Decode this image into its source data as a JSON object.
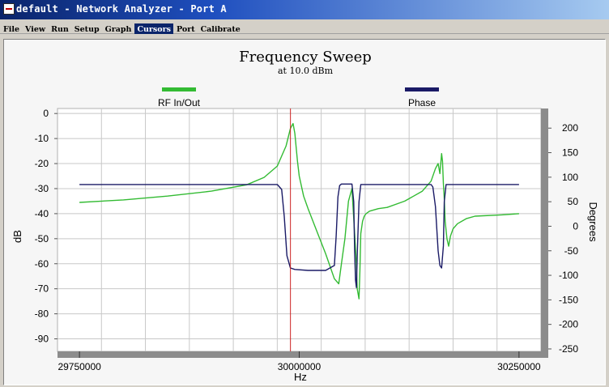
{
  "window": {
    "title": "default - Network Analyzer - Port A"
  },
  "menu": [
    {
      "label": "File"
    },
    {
      "label": "View"
    },
    {
      "label": "Run"
    },
    {
      "label": "Setup"
    },
    {
      "label": "Graph"
    },
    {
      "label": "Cursors",
      "active": true
    },
    {
      "label": "Port"
    },
    {
      "label": "Calibrate"
    }
  ],
  "colors": {
    "rf_series": "#33bb33",
    "phase_series": "#1a1a66",
    "cursor": "#cc2222",
    "grid": "#c8c8c8"
  },
  "chart_data": {
    "type": "line",
    "title": "Frequency Sweep",
    "subtitle": "at 10.0 dBm",
    "xlabel": "Hz",
    "ylabel_left": "dB",
    "ylabel_right": "Degrees",
    "xlim": [
      29725000,
      30275000
    ],
    "ylim_left": [
      -95,
      2
    ],
    "ylim_right": [
      -255,
      240
    ],
    "x_ticks": [
      29750000,
      30000000,
      30250000
    ],
    "x_tick_labels": [
      "29750000",
      "30000000",
      "30250000"
    ],
    "y_left_ticks": [
      0,
      -10,
      -20,
      -30,
      -40,
      -50,
      -60,
      -70,
      -80,
      -90
    ],
    "y_left_tick_labels": [
      "0",
      "-10",
      "-20",
      "-30",
      "-40",
      "-50",
      "-60",
      "-70",
      "-80",
      "-90"
    ],
    "y_right_ticks": [
      200,
      150,
      100,
      50,
      0,
      -50,
      -100,
      -150,
      -200,
      -250
    ],
    "y_right_tick_labels": [
      "200",
      "150",
      "100",
      "50",
      "0",
      "-50",
      "-100",
      "-150",
      "-200",
      "-250"
    ],
    "grid": true,
    "legend_position": "top",
    "cursor_x": 29990000,
    "series": [
      {
        "name": "RF In/Out",
        "axis": "left",
        "x": [
          29750000,
          29800000,
          29850000,
          29900000,
          29940000,
          29960000,
          29975000,
          29985000,
          29990000,
          29993000,
          29995000,
          29998000,
          30000000,
          30005000,
          30010000,
          30020000,
          30030000,
          30040000,
          30045000,
          30048000,
          30052000,
          30056000,
          30060000,
          30065000,
          30066000,
          30068000,
          30069000,
          30070000,
          30072000,
          30074000,
          30076000,
          30080000,
          30090000,
          30100000,
          30120000,
          30140000,
          30150000,
          30155000,
          30158000,
          30160000,
          30162000,
          30163000,
          30164000,
          30165000,
          30166000,
          30168000,
          30170000,
          30172000,
          30175000,
          30180000,
          30190000,
          30200000,
          30230000,
          30250000
        ],
        "y": [
          -35.5,
          -34.5,
          -33,
          -31,
          -28.5,
          -25.5,
          -21,
          -13,
          -6,
          -4,
          -8,
          -19,
          -25,
          -33,
          -38,
          -47,
          -56,
          -66,
          -68,
          -60,
          -50,
          -35,
          -30,
          -60,
          -70,
          -74,
          -63,
          -48,
          -43,
          -41,
          -40,
          -39,
          -38,
          -37.5,
          -35,
          -31,
          -27,
          -22,
          -20,
          -24,
          -16,
          -19,
          -28,
          -34,
          -43,
          -50,
          -53,
          -49,
          -46,
          -44,
          -42,
          -41,
          -40.5,
          -40
        ]
      },
      {
        "name": "Phase",
        "axis": "right",
        "x": [
          29750000,
          29950000,
          29975000,
          29980000,
          29983000,
          29986000,
          29990000,
          29995000,
          30010000,
          30030000,
          30040000,
          30042000,
          30044000,
          30046000,
          30048000,
          30050000,
          30056000,
          30060000,
          30062000,
          30063000,
          30064000,
          30065000,
          30066000,
          30068000,
          30070000,
          30150000,
          30152000,
          30155000,
          30158000,
          30160000,
          30162000,
          30164000,
          30165000,
          30167000,
          30170000,
          30180000,
          30250000
        ],
        "y": [
          85,
          85,
          85,
          75,
          20,
          -60,
          -85,
          -88,
          -90,
          -90,
          -80,
          -20,
          60,
          83,
          86,
          86,
          86,
          86,
          50,
          -50,
          -110,
          -125,
          -60,
          50,
          85,
          85,
          80,
          40,
          -50,
          -80,
          -85,
          -40,
          50,
          85,
          85,
          85,
          85
        ]
      }
    ]
  }
}
